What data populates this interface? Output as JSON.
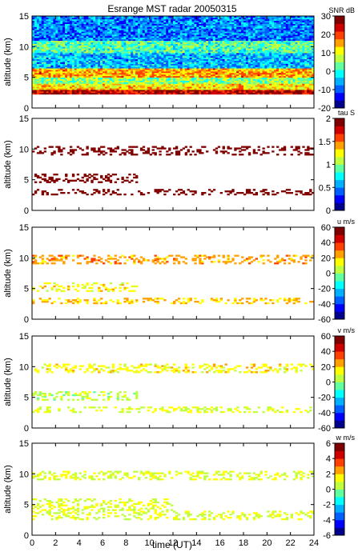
{
  "title": "Esrange MST radar 20050315",
  "xlabel": "time (UT)",
  "colormap": [
    "#00008f",
    "#0000ff",
    "#0060ff",
    "#00b0ff",
    "#00ffff",
    "#60ff9f",
    "#c0ff40",
    "#ffff00",
    "#ffa000",
    "#ff4000",
    "#d00000",
    "#800000"
  ],
  "chart_data": [
    {
      "type": "heatmap",
      "ylabel": "altitude (km)",
      "ylim": [
        0,
        15
      ],
      "yticks": [
        0,
        5,
        10,
        15
      ],
      "xlim": [
        0,
        24
      ],
      "xticks": [
        0,
        2,
        4,
        6,
        8,
        10,
        12,
        14,
        16,
        18,
        20,
        22,
        24
      ],
      "colorbar_label": "SNR dB",
      "clim": [
        -20,
        30
      ],
      "cticks": [
        -20,
        -10,
        0,
        10,
        20,
        30
      ],
      "bands": [
        {
          "alt": [
            0.0,
            2.2
          ],
          "value": null
        },
        {
          "alt": [
            2.2,
            3.0
          ],
          "value": 25
        },
        {
          "alt": [
            3.0,
            4.0
          ],
          "value": 12
        },
        {
          "alt": [
            4.0,
            5.0
          ],
          "value": 5
        },
        {
          "alt": [
            5.0,
            6.5
          ],
          "value": 15
        },
        {
          "alt": [
            6.5,
            9.0
          ],
          "value": -5
        },
        {
          "alt": [
            9.0,
            11.0
          ],
          "value": 2
        },
        {
          "alt": [
            11.0,
            15.0
          ],
          "value": -8
        }
      ]
    },
    {
      "type": "heatmap",
      "ylabel": "altitude (km)",
      "ylim": [
        0,
        15
      ],
      "yticks": [
        0,
        5,
        10,
        15
      ],
      "xlim": [
        0,
        24
      ],
      "xticks": [
        0,
        2,
        4,
        6,
        8,
        10,
        12,
        14,
        16,
        18,
        20,
        22,
        24
      ],
      "colorbar_label": "tau S",
      "clim": [
        0,
        2
      ],
      "cticks": [
        0,
        0.5,
        1,
        1.5,
        2
      ],
      "layers": [
        {
          "alt": [
            2.5,
            3.5
          ],
          "t": [
            0,
            24
          ],
          "value": 2
        },
        {
          "alt": [
            4.5,
            6.0
          ],
          "t": [
            0,
            9
          ],
          "value": 2
        },
        {
          "alt": [
            9.0,
            10.5
          ],
          "t": [
            0,
            24
          ],
          "value": 2
        }
      ]
    },
    {
      "type": "heatmap",
      "ylabel": "altitude (km)",
      "ylim": [
        0,
        15
      ],
      "yticks": [
        0,
        5,
        10,
        15
      ],
      "xlim": [
        0,
        24
      ],
      "xticks": [
        0,
        2,
        4,
        6,
        8,
        10,
        12,
        14,
        16,
        18,
        20,
        22,
        24
      ],
      "colorbar_label": "u m/s",
      "clim": [
        -60,
        60
      ],
      "cticks": [
        -60,
        -40,
        -20,
        0,
        20,
        40,
        60
      ],
      "layers": [
        {
          "alt": [
            2.5,
            3.5
          ],
          "t": [
            0,
            24
          ],
          "value": 20
        },
        {
          "alt": [
            4.5,
            6.0
          ],
          "t": [
            0,
            9
          ],
          "value": 15
        },
        {
          "alt": [
            9.0,
            10.5
          ],
          "t": [
            0,
            24
          ],
          "value": 25
        }
      ]
    },
    {
      "type": "heatmap",
      "ylabel": "altitude (km)",
      "ylim": [
        0,
        15
      ],
      "yticks": [
        0,
        5,
        10,
        15
      ],
      "xlim": [
        0,
        24
      ],
      "xticks": [
        0,
        2,
        4,
        6,
        8,
        10,
        12,
        14,
        16,
        18,
        20,
        22,
        24
      ],
      "colorbar_label": "v m/s",
      "clim": [
        -60,
        60
      ],
      "cticks": [
        -60,
        -40,
        -20,
        0,
        20,
        40,
        60
      ],
      "layers": [
        {
          "alt": [
            2.5,
            3.5
          ],
          "t": [
            0,
            24
          ],
          "value": 10
        },
        {
          "alt": [
            4.5,
            6.0
          ],
          "t": [
            0,
            9
          ],
          "value": 5
        },
        {
          "alt": [
            9.0,
            10.5
          ],
          "t": [
            0,
            24
          ],
          "value": 15
        }
      ]
    },
    {
      "type": "heatmap",
      "ylabel": "altitude (km)",
      "ylim": [
        0,
        15
      ],
      "yticks": [
        0,
        5,
        10,
        15
      ],
      "xlim": [
        0,
        24
      ],
      "xticks": [
        0,
        2,
        4,
        6,
        8,
        10,
        12,
        14,
        16,
        18,
        20,
        22,
        24
      ],
      "colorbar_label": "w m/s",
      "clim": [
        -6,
        6
      ],
      "cticks": [
        -6,
        -4,
        -2,
        0,
        2,
        4,
        6
      ],
      "layers": [
        {
          "alt": [
            2.5,
            4.0
          ],
          "t": [
            0,
            24
          ],
          "value": 1
        },
        {
          "alt": [
            4.0,
            6.0
          ],
          "t": [
            0,
            12
          ],
          "value": 1
        },
        {
          "alt": [
            9.0,
            10.5
          ],
          "t": [
            0,
            24
          ],
          "value": 1
        }
      ]
    }
  ]
}
